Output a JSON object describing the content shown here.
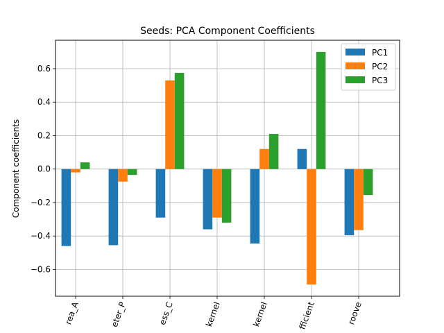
{
  "chart_data": {
    "type": "bar",
    "title": "Seeds: PCA Component Coefficients",
    "xlabel": "",
    "ylabel": "Component coefficients",
    "categories": [
      "area_A",
      "perimeter_P",
      "compactness_C",
      "length_of_kernel",
      "width_of_kernel",
      "asymmetry_coefficient",
      "length_of_kernel_groove"
    ],
    "categories_visible": [
      "rea_A",
      "eter_P",
      "ess_C",
      "kernel",
      "kernel",
      "fficient",
      "roove"
    ],
    "series": [
      {
        "name": "PC1",
        "color": "#1f77b4",
        "values": [
          -0.46,
          -0.455,
          -0.29,
          -0.36,
          -0.445,
          0.12,
          -0.395
        ]
      },
      {
        "name": "PC2",
        "color": "#ff7f0e",
        "values": [
          -0.02,
          -0.075,
          0.53,
          -0.29,
          0.12,
          -0.69,
          -0.365
        ]
      },
      {
        "name": "PC3",
        "color": "#2ca02c",
        "values": [
          0.04,
          -0.035,
          0.575,
          -0.32,
          0.21,
          0.7,
          -0.155
        ]
      }
    ],
    "ylim": [
      -0.76,
      0.77
    ],
    "yticks": [
      -0.6,
      -0.4,
      -0.2,
      0.0,
      0.2,
      0.4,
      0.6
    ],
    "ytick_labels": [
      "−0.6",
      "−0.4",
      "−0.2",
      "0.0",
      "0.2",
      "0.4",
      "0.6"
    ],
    "grid": true,
    "legend_position": "top-right"
  }
}
